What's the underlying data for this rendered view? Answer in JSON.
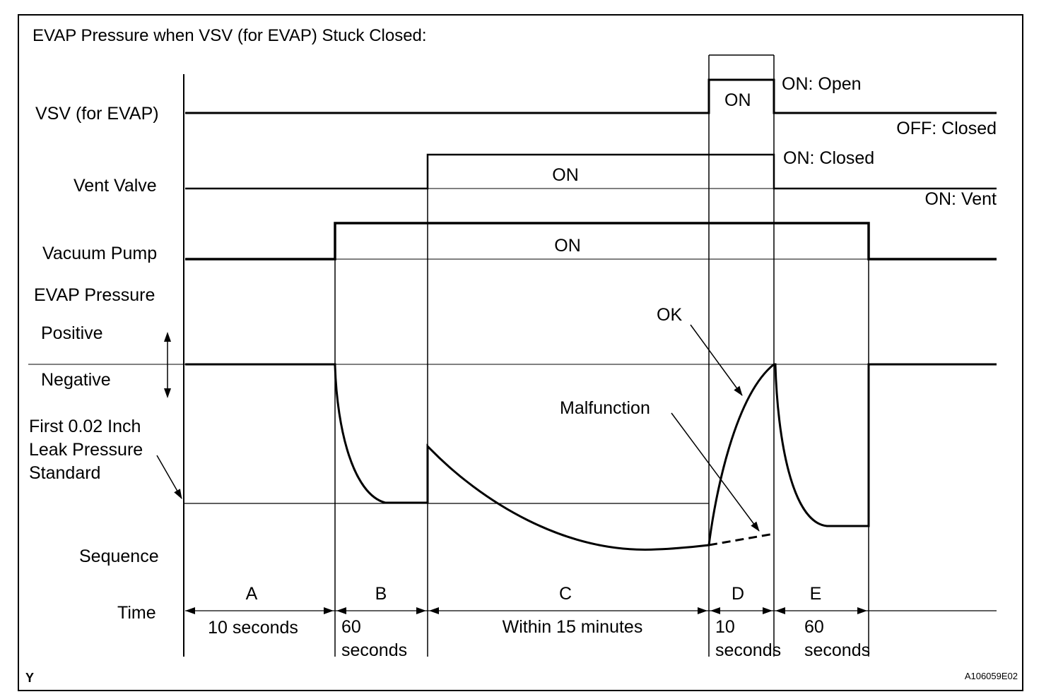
{
  "title": "EVAP Pressure when VSV (for EVAP) Stuck Closed:",
  "rows": {
    "vsv": "VSV (for EVAP)",
    "vent_valve": "Vent Valve",
    "vacuum_pump": "Vacuum Pump",
    "evap_pressure": "EVAP Pressure",
    "positive": "Positive",
    "negative": "Negative",
    "leak_standard_line1": "First 0.02 Inch",
    "leak_standard_line2": "Leak Pressure",
    "leak_standard_line3": "Standard",
    "sequence": "Sequence",
    "time": "Time"
  },
  "states": {
    "vsv_on": "ON",
    "vsv_on_state": "ON: Open",
    "vsv_off_state": "OFF: Closed",
    "vent_on": "ON",
    "vent_on_state": "ON: Closed",
    "vent_off_state": "ON: Vent",
    "pump_on": "ON"
  },
  "callouts": {
    "ok": "OK",
    "malfunction": "Malfunction"
  },
  "sequence": [
    {
      "label": "A",
      "time_line1": "10 seconds",
      "time_line2": ""
    },
    {
      "label": "B",
      "time_line1": "60",
      "time_line2": "seconds"
    },
    {
      "label": "C",
      "time_line1": "Within 15 minutes",
      "time_line2": ""
    },
    {
      "label": "D",
      "time_line1": "10",
      "time_line2": "seconds"
    },
    {
      "label": "E",
      "time_line1": "60",
      "time_line2": "seconds"
    }
  ],
  "footer": {
    "left_mark": "Y",
    "figure_code": "A106059E02"
  }
}
